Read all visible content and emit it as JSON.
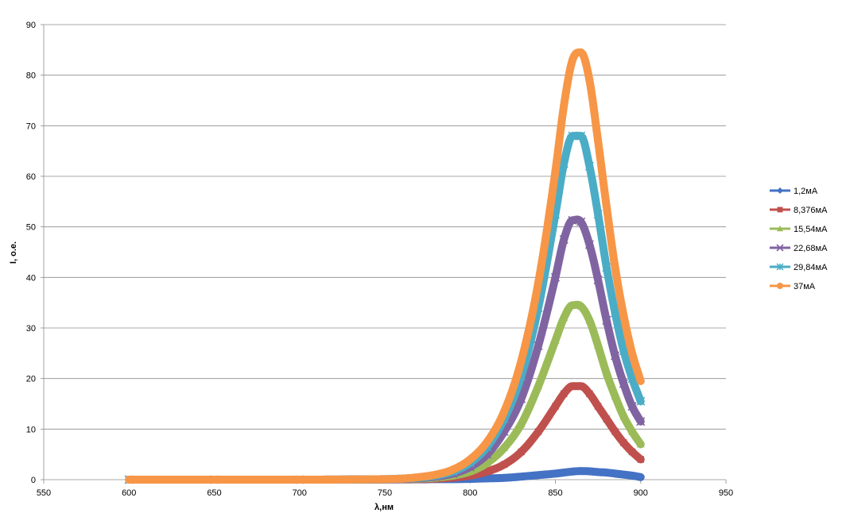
{
  "chart_data": {
    "type": "line",
    "title": "",
    "xlabel": "λ,нм",
    "ylabel": "I, о.е.",
    "xlim": [
      550,
      950
    ],
    "ylim": [
      0,
      90
    ],
    "x_ticks": [
      550,
      600,
      650,
      700,
      750,
      800,
      850,
      900,
      950
    ],
    "y_ticks": [
      0,
      10,
      20,
      30,
      40,
      50,
      60,
      70,
      80,
      90
    ],
    "grid": "horizontal",
    "legend_position": "right",
    "x": [
      600,
      650,
      700,
      750,
      760,
      770,
      780,
      790,
      800,
      810,
      820,
      830,
      840,
      850,
      855,
      860,
      865,
      870,
      875,
      880,
      885,
      890,
      895,
      900
    ],
    "series": [
      {
        "name": "1,2мА",
        "color": "#4472C4",
        "marker": "diamond",
        "values": [
          0,
          0,
          0,
          0.05,
          0.05,
          0.05,
          0.1,
          0.1,
          0.15,
          0.25,
          0.35,
          0.6,
          0.9,
          1.2,
          1.4,
          1.6,
          1.7,
          1.65,
          1.5,
          1.4,
          1.2,
          1.0,
          0.8,
          0.5
        ]
      },
      {
        "name": "8,376мА",
        "color": "#C0504D",
        "marker": "square",
        "values": [
          0,
          0,
          0,
          0.05,
          0.05,
          0.1,
          0.2,
          0.4,
          0.8,
          1.6,
          3.0,
          5.5,
          9.5,
          14.5,
          17.0,
          18.5,
          18.5,
          17.0,
          14.5,
          12.0,
          9.5,
          7.3,
          5.5,
          4.0
        ]
      },
      {
        "name": "15,54мА",
        "color": "#9BBB59",
        "marker": "triangle",
        "values": [
          0,
          0,
          0,
          0.05,
          0.1,
          0.2,
          0.4,
          0.8,
          1.6,
          3.3,
          6.3,
          11.0,
          18.5,
          27.5,
          32.0,
          34.5,
          34.3,
          31.5,
          26.5,
          21.0,
          16.5,
          12.5,
          9.5,
          7.0
        ]
      },
      {
        "name": "22,68мА",
        "color": "#8064A2",
        "marker": "x",
        "values": [
          0,
          0,
          0,
          0.05,
          0.1,
          0.3,
          0.6,
          1.2,
          2.5,
          5.0,
          9.5,
          16.0,
          26.5,
          40.0,
          47.5,
          51.3,
          51.0,
          46.5,
          39.5,
          31.5,
          24.5,
          19.0,
          14.5,
          11.5
        ]
      },
      {
        "name": "29,84мА",
        "color": "#4BACC6",
        "marker": "star",
        "values": [
          0,
          0,
          0,
          0.1,
          0.2,
          0.4,
          0.8,
          1.6,
          3.3,
          6.5,
          12.0,
          20.5,
          34.0,
          52.5,
          62.5,
          68.0,
          68.0,
          62.0,
          52.5,
          42.0,
          33.0,
          25.5,
          20.0,
          15.5
        ]
      },
      {
        "name": "37мА",
        "color": "#F79646",
        "marker": "circle",
        "values": [
          0,
          0,
          0,
          0.1,
          0.2,
          0.5,
          1.0,
          2.0,
          4.0,
          7.5,
          13.5,
          23.5,
          39.0,
          61.0,
          74.0,
          83.0,
          84.5,
          79.0,
          67.0,
          54.0,
          42.0,
          32.5,
          25.0,
          19.5
        ]
      }
    ]
  }
}
